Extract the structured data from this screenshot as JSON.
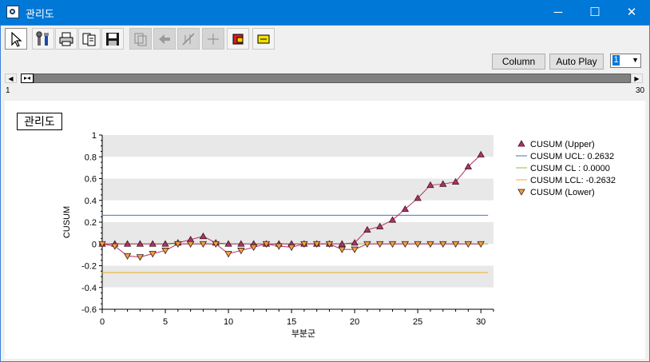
{
  "window": {
    "title": "관리도",
    "min_glyph": "─",
    "max_glyph": "☐",
    "close_glyph": "✕"
  },
  "toolbar": {
    "items": [
      {
        "icon": "pointer-icon",
        "enabled": true,
        "selected": true
      },
      {
        "icon": "tools-icon",
        "enabled": true
      },
      {
        "icon": "print-icon",
        "enabled": true
      },
      {
        "icon": "copy-icon",
        "enabled": true
      },
      {
        "icon": "save-icon",
        "enabled": true
      },
      {
        "icon": "copy-chart-icon",
        "enabled": false
      },
      {
        "icon": "move-icon",
        "enabled": false
      },
      {
        "icon": "scale-icon",
        "enabled": false
      },
      {
        "icon": "crosshair-icon",
        "enabled": false
      },
      {
        "icon": "tag-red-icon",
        "enabled": true
      },
      {
        "icon": "tag-yellow-icon",
        "enabled": true
      }
    ],
    "column_label": "Column",
    "autoplay_label": "Auto Play",
    "combo_value": "1"
  },
  "range": {
    "start": "1",
    "end": "30"
  },
  "chart_data": {
    "type": "line",
    "title": "관리도",
    "xlabel": "부분군",
    "ylabel": "CUSUM",
    "xlim": [
      0,
      31
    ],
    "ylim": [
      -0.6,
      1
    ],
    "xticks": [
      0,
      5,
      10,
      15,
      20,
      25,
      30
    ],
    "yticks": [
      1,
      0.8,
      0.6,
      0.4,
      0.2,
      0,
      -0.2,
      -0.4,
      -0.6
    ],
    "ytick_labels": [
      "1",
      "0.8",
      "0.6",
      "0.4",
      "0.2",
      "0",
      "-0.2",
      "-0.4",
      "-0.6"
    ],
    "x": [
      0,
      1,
      2,
      3,
      4,
      5,
      6,
      7,
      8,
      9,
      10,
      11,
      12,
      13,
      14,
      15,
      16,
      17,
      18,
      19,
      20,
      21,
      22,
      23,
      24,
      25,
      26,
      27,
      28,
      29,
      30
    ],
    "series": [
      {
        "name": "CUSUM (Upper)",
        "color": "#b0306a",
        "marker": "triangle-up",
        "values": [
          0,
          0,
          0,
          0,
          0,
          0,
          0.01,
          0.04,
          0.07,
          0.01,
          0,
          0,
          0,
          0,
          0,
          0,
          0,
          0,
          0,
          0,
          0.01,
          0.13,
          0.16,
          0.22,
          0.32,
          0.42,
          0.54,
          0.55,
          0.57,
          0.71,
          0.82
        ]
      },
      {
        "name": "CUSUM (Lower)",
        "color": "#b0306a",
        "marker": "triangle-down",
        "values": [
          0,
          -0.02,
          -0.11,
          -0.12,
          -0.09,
          -0.06,
          0,
          0,
          0,
          0,
          -0.09,
          -0.06,
          -0.03,
          0,
          -0.02,
          -0.03,
          0,
          0,
          0,
          -0.05,
          -0.05,
          0,
          0,
          0,
          0,
          0,
          0,
          0,
          0,
          0,
          0
        ]
      }
    ],
    "control_lines": [
      {
        "name": "CUSUM UCL: 0.2632",
        "value": 0.2632,
        "color": "#3a78c0"
      },
      {
        "name": "CUSUM CL : 0.0000",
        "value": 0,
        "color": "#88c040"
      },
      {
        "name": "CUSUM LCL: -0.2632",
        "value": -0.2632,
        "color": "#f0b020"
      }
    ],
    "legend_labels": [
      "CUSUM (Upper)",
      "CUSUM UCL: 0.2632",
      "CUSUM CL : 0.0000",
      "CUSUM LCL: -0.2632",
      "CUSUM (Lower)"
    ],
    "legend_position": "right",
    "bands": "alternating gray horizontal bands"
  }
}
